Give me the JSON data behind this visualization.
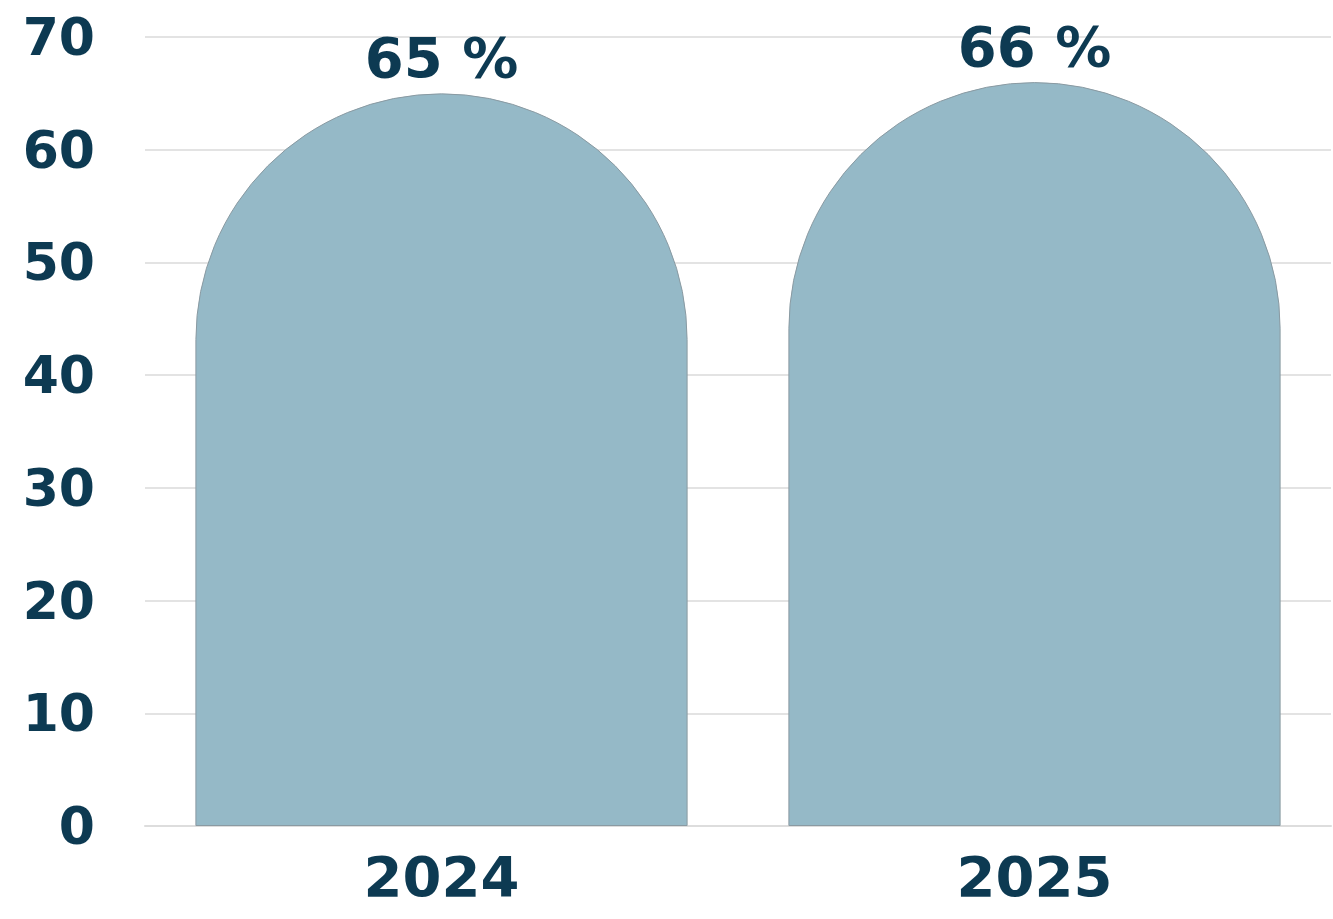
{
  "chart_data": {
    "type": "bar",
    "categories": [
      "2024",
      "2025"
    ],
    "values": [
      65,
      66
    ],
    "value_labels": [
      "65 %",
      "66 %"
    ],
    "color": "#95b9c7",
    "ylim": [
      0,
      70
    ],
    "yticks": [
      0,
      10,
      20,
      30,
      40,
      50,
      60,
      70
    ],
    "grid": "y"
  }
}
